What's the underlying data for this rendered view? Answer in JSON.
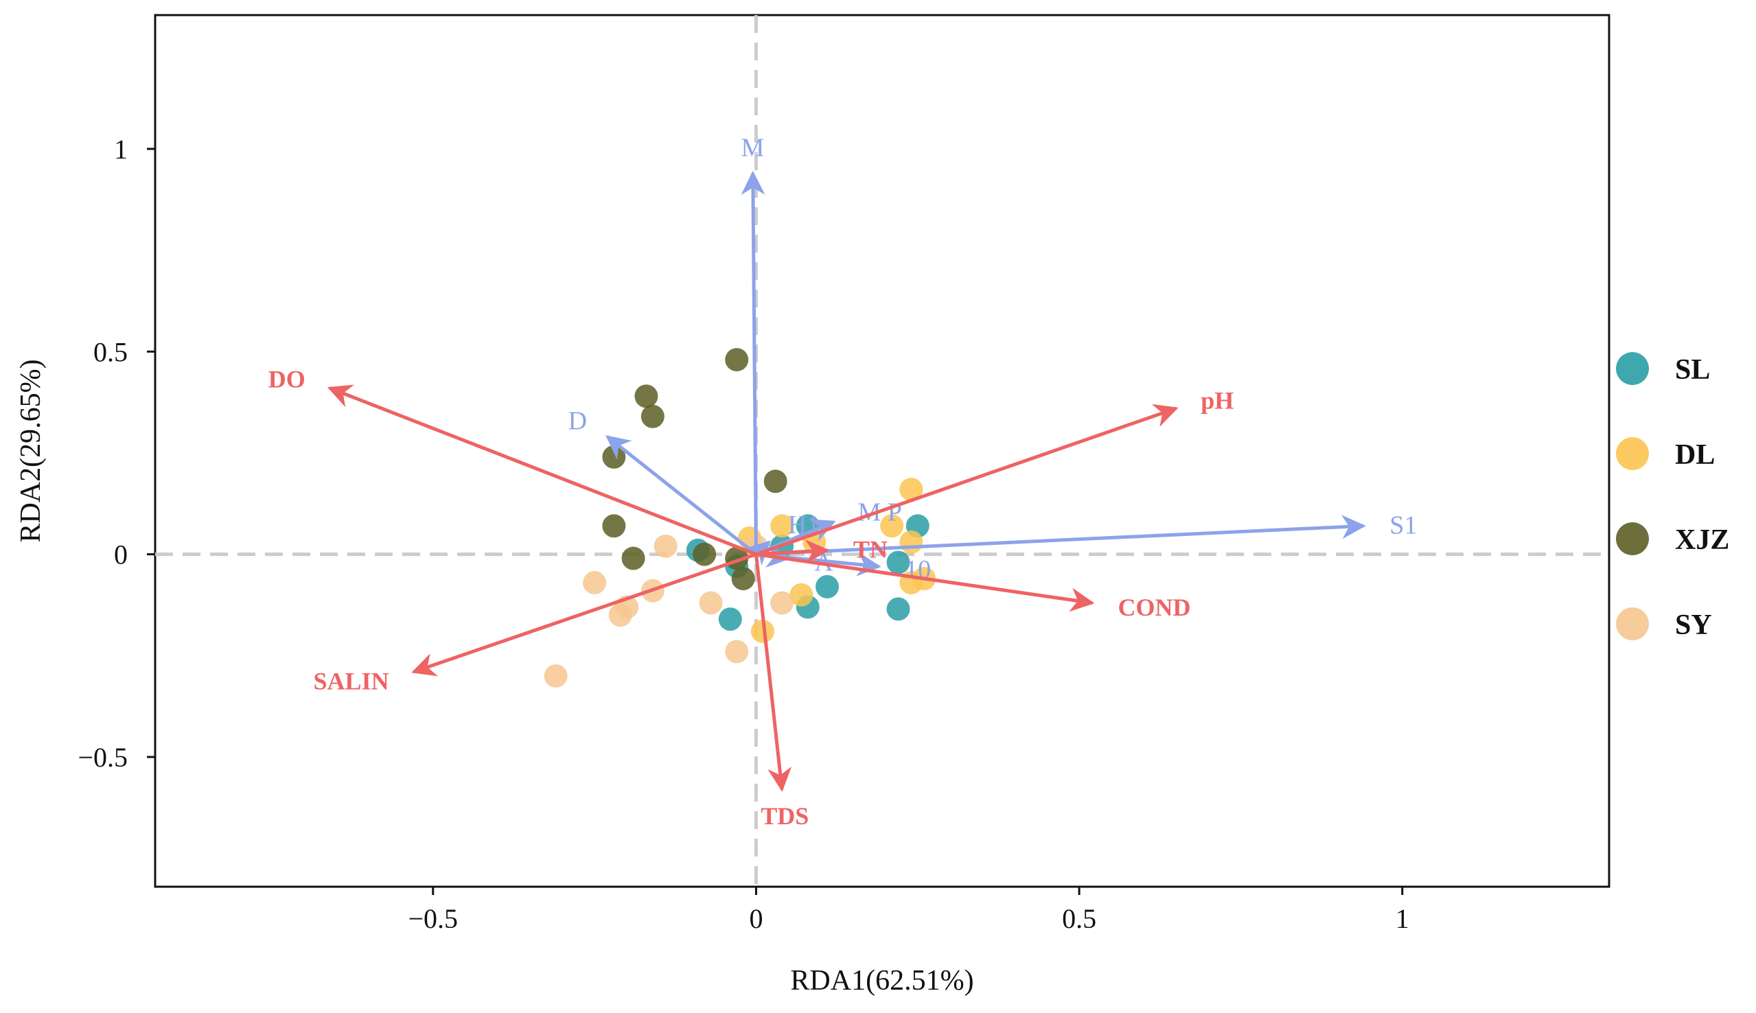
{
  "chart_data": {
    "type": "scatter",
    "subtype": "rda-biplot",
    "title": "",
    "xlabel": "RDA1(62.51%)",
    "ylabel": "RDA2(29.65%)",
    "xlim": [
      -0.93,
      1.32
    ],
    "ylim": [
      -0.82,
      1.33
    ],
    "xticks": [
      -0.5,
      0,
      0.5,
      1
    ],
    "xtick_labels": [
      "−0.5",
      "0",
      "0.5",
      "1"
    ],
    "yticks": [
      -0.5,
      0,
      0.5,
      1
    ],
    "ytick_labels": [
      "−0.5",
      "0",
      "0.5",
      "1"
    ],
    "grid": false,
    "reference_lines": {
      "x": 0,
      "y": 0,
      "style": "dashed",
      "color": "#cccccc"
    },
    "legend": {
      "position": "right",
      "entries": [
        "SL",
        "DL",
        "XJZ",
        "SY"
      ]
    },
    "colors": {
      "SL": "#2a9ea6",
      "DL": "#fcc450",
      "XJZ": "#5c5f25",
      "SY": "#f6c790",
      "env_arrow": "#ee6363",
      "species_arrow": "#8ca3ea"
    },
    "env_arrows": [
      {
        "label": "DO",
        "x": -0.66,
        "y": 0.41
      },
      {
        "label": "pH",
        "x": 0.65,
        "y": 0.36
      },
      {
        "label": "COND",
        "x": 0.52,
        "y": -0.12
      },
      {
        "label": "SALIN",
        "x": -0.53,
        "y": -0.29
      },
      {
        "label": "TDS",
        "x": 0.04,
        "y": -0.58
      },
      {
        "label": "TN",
        "x": 0.11,
        "y": 0.01
      }
    ],
    "species_arrows": [
      {
        "label": "M",
        "x": -0.005,
        "y": 0.94
      },
      {
        "label": "S1",
        "x": 0.94,
        "y": 0.07
      },
      {
        "label": "D",
        "x": -0.23,
        "y": 0.29
      },
      {
        "label": "M P",
        "x": 0.12,
        "y": 0.08
      },
      {
        "label": "H1",
        "x": 0.02,
        "y": 0.03
      },
      {
        "label": "10",
        "x": 0.19,
        "y": -0.03
      },
      {
        "label": "A",
        "x": 0.05,
        "y": -0.01
      }
    ],
    "series": [
      {
        "name": "SL",
        "points": [
          [
            0.25,
            0.07
          ],
          [
            0.22,
            -0.02
          ],
          [
            0.08,
            0.07
          ],
          [
            0.11,
            -0.08
          ],
          [
            0.08,
            -0.13
          ],
          [
            0.22,
            -0.135
          ],
          [
            -0.04,
            -0.16
          ],
          [
            -0.09,
            0.01
          ],
          [
            -0.03,
            -0.03
          ],
          [
            0.04,
            0.02
          ]
        ]
      },
      {
        "name": "DL",
        "points": [
          [
            0.24,
            0.16
          ],
          [
            0.21,
            0.07
          ],
          [
            0.24,
            0.03
          ],
          [
            0.26,
            -0.06
          ],
          [
            0.24,
            -0.07
          ],
          [
            0.07,
            -0.1
          ],
          [
            0.04,
            0.07
          ],
          [
            0.01,
            -0.19
          ],
          [
            0.09,
            0.03
          ],
          [
            -0.01,
            0.04
          ]
        ]
      },
      {
        "name": "XJZ",
        "points": [
          [
            -0.03,
            0.48
          ],
          [
            -0.17,
            0.39
          ],
          [
            -0.16,
            0.34
          ],
          [
            -0.22,
            0.24
          ],
          [
            0.03,
            0.18
          ],
          [
            -0.22,
            0.07
          ],
          [
            -0.19,
            -0.01
          ],
          [
            -0.08,
            0.0
          ],
          [
            -0.02,
            -0.06
          ],
          [
            -0.03,
            -0.01
          ]
        ]
      },
      {
        "name": "SY",
        "points": [
          [
            -0.14,
            0.02
          ],
          [
            -0.25,
            -0.07
          ],
          [
            -0.16,
            -0.09
          ],
          [
            -0.2,
            -0.13
          ],
          [
            -0.21,
            -0.15
          ],
          [
            -0.07,
            -0.12
          ],
          [
            -0.03,
            -0.24
          ],
          [
            -0.31,
            -0.3
          ],
          [
            0.04,
            -0.12
          ],
          [
            0.0,
            0.02
          ]
        ]
      }
    ]
  }
}
